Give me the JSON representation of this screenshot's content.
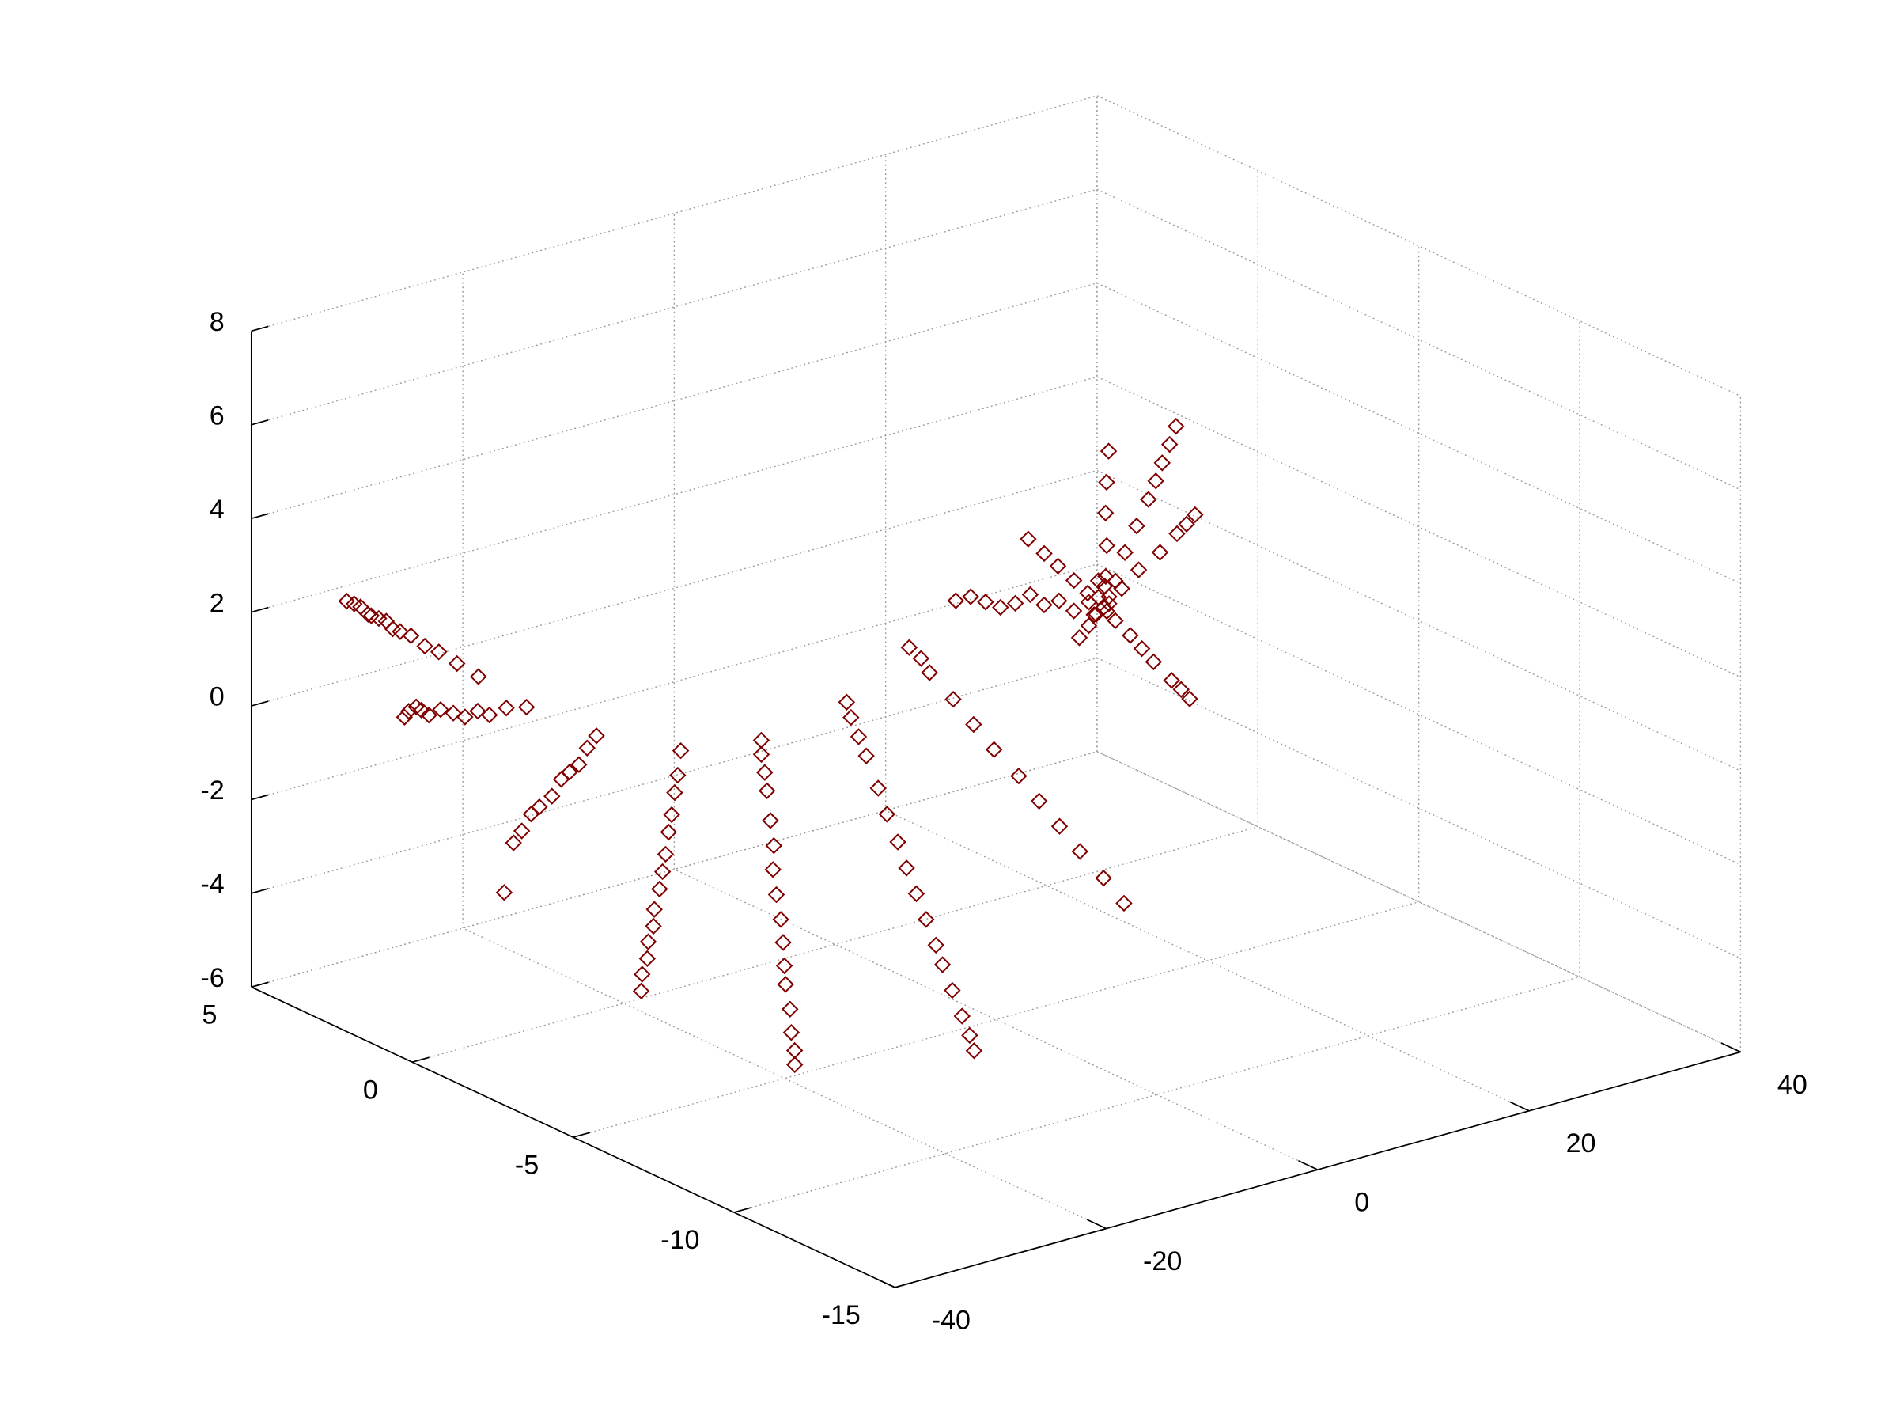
{
  "chart_data": {
    "type": "scatter3d",
    "color": "#800000",
    "marker": "diamond",
    "grid": true,
    "xlim": [
      -40,
      40
    ],
    "xticks": [
      -40,
      -20,
      0,
      20,
      40
    ],
    "ylim": [
      -15,
      5
    ],
    "yticks": [
      -15,
      -10,
      -5,
      0,
      5
    ],
    "zlim": [
      -6,
      8
    ],
    "zticks": [
      -6,
      -4,
      -2,
      0,
      2,
      4,
      6,
      8
    ],
    "x": [
      -38.9,
      -38.8,
      -38.8,
      -38.7,
      -38.7,
      -38.6,
      -38.5,
      -38.5,
      -38.4,
      -38.3,
      -38.2,
      -38.1,
      -37.9,
      -37.7,
      -38.3,
      -37.9,
      -37.5,
      -37.0,
      -36.6,
      -35.8,
      -34.9,
      -34.1,
      -33.2,
      -32.4,
      -31.1,
      -29.8,
      -38.0,
      -35.9,
      -33.9,
      -31.8,
      -29.8,
      -27.7,
      -25.6,
      -23.6,
      -21.5,
      -19.5,
      -17.4,
      -29.3,
      -28.3,
      -27.2,
      -26.2,
      -25.1,
      -24.1,
      -23.0,
      -21.8,
      -20.6,
      -19.4,
      -18.2,
      -17.0,
      -15.8,
      -14.3,
      -23.6,
      -23.0,
      -22.1,
      -21.0,
      -19.9,
      -18.8,
      -17.7,
      -16.7,
      -15.6,
      -14.4,
      -13.1,
      -11.9,
      -10.7,
      -9.7,
      -8.8,
      -8.2,
      -11.2,
      -10.7,
      -9.9,
      -9.0,
      -8.1,
      -7.2,
      -6.3,
      -5.4,
      -4.5,
      -3.5,
      -2.4,
      -1.4,
      -0.4,
      0.4,
      1.2,
      1.7,
      4.5,
      4.7,
      4.9,
      5.1,
      5.3,
      5.5,
      5.6,
      5.8,
      6.0,
      6.2,
      6.3,
      6.4,
      11.1,
      11.3,
      10.9,
      11.4,
      11.0,
      10.8,
      11.5,
      11.2,
      11.6,
      12.2,
      12.7,
      13.2,
      13.6,
      13.9,
      14.3,
      14.6,
      12.2,
      13.2,
      14.3,
      15.3,
      15.9,
      16.4,
      11.9,
      12.7,
      13.5,
      14.3,
      15.4,
      16.0,
      16.5,
      10.3,
      9.5,
      8.7,
      7.9,
      7.2,
      6.4,
      5.6,
      4.8,
      4.0,
      3.2,
      11.6,
      12.0,
      12.5,
      12.9,
      13.4,
      10.4,
      9.7,
      8.8,
      10.2,
      9.2,
      8.3,
      7.3,
      6.4
    ],
    "y": [
      2.4,
      2.2,
      2.0,
      1.8,
      1.7,
      1.5,
      1.3,
      1.1,
      0.9,
      0.6,
      0.2,
      -0.2,
      -0.7,
      -1.3,
      0.8,
      0.8,
      0.7,
      0.7,
      0.6,
      0.5,
      0.4,
      0.3,
      0.2,
      0.1,
      0,
      -0.2,
      -2.2,
      -1.8,
      -1.4,
      -1.0,
      -0.6,
      -0.3,
      0.1,
      0.5,
      0.9,
      1.3,
      1.7,
      -3.6,
      -3.3,
      -3.1,
      -2.8,
      -2.6,
      -2.3,
      -2.1,
      -1.8,
      -1.5,
      -1.2,
      -0.9,
      -0.6,
      -0.3,
      0.1,
      -6.5,
      -6.3,
      -5.9,
      -5.5,
      -5.0,
      -4.6,
      -4.2,
      -3.8,
      -3.3,
      -2.8,
      -2.4,
      -1.9,
      -1.4,
      -1.0,
      -0.6,
      -0.4,
      -8.0,
      -7.7,
      -7.2,
      -6.6,
      -6.0,
      -5.5,
      -4.9,
      -4.3,
      -3.7,
      -3.1,
      -2.4,
      -1.8,
      -1.1,
      -0.6,
      -0.1,
      0.2,
      -7.5,
      -6.8,
      -6.0,
      -5.3,
      -4.6,
      -3.9,
      -3.1,
      -2.4,
      -1.7,
      -0.9,
      -0.6,
      -0.2,
      -4.7,
      -4.8,
      -4.6,
      -4.7,
      -4.9,
      -4.5,
      -4.6,
      -4.5,
      -4.9,
      -5.0,
      -5.2,
      -5.4,
      -5.5,
      -5.6,
      -5.7,
      -5.8,
      -4.9,
      -5.1,
      -5.4,
      -5.6,
      -5.7,
      -5.8,
      -4.8,
      -5.0,
      -5.1,
      -5.2,
      -5.4,
      -5.5,
      -5.6,
      -4.5,
      -4.3,
      -4.1,
      -3.9,
      -3.7,
      -3.5,
      -3.3,
      -3.1,
      -2.9,
      -2.7,
      -4.6,
      -4.5,
      -4.3,
      -4.2,
      -4.1,
      -4.7,
      -4.7,
      -4.7,
      -4.5,
      -4.4,
      -4.2,
      -4.1,
      -3.9
    ],
    "z": [
      3,
      3,
      3,
      2.9,
      2.9,
      2.9,
      2.9,
      2.8,
      2.8,
      2.8,
      2.7,
      2.7,
      2.6,
      2.5,
      1,
      1.1,
      1.2,
      1.1,
      1,
      1.1,
      1,
      0.9,
      1,
      0.9,
      1,
      1,
      -1.8,
      -1,
      -1,
      -0.9,
      -1,
      -1,
      -0.9,
      -1,
      -1.1,
      -1,
      -1,
      -4,
      -3.8,
      -3.6,
      -3.4,
      -3.2,
      -3.0,
      -2.7,
      -2.5,
      -2.3,
      -2.0,
      -1.8,
      -1.5,
      -1.3,
      -1,
      -5,
      -4.8,
      -4.6,
      -4.3,
      -4.0,
      -3.8,
      -3.5,
      -3.2,
      -2.9,
      -2.6,
      -2.3,
      -2.0,
      -1.6,
      -1.4,
      -1.2,
      -1,
      -5,
      -4.8,
      -4.6,
      -4.3,
      -4.0,
      -3.8,
      -3.5,
      -3.2,
      -2.9,
      -2.6,
      -2.3,
      -2.0,
      -1.6,
      -1.4,
      -1.2,
      -1,
      -3,
      -2.7,
      -2.4,
      -2.1,
      -1.8,
      -1.5,
      -1.2,
      -0.9,
      -0.6,
      -0.3,
      -0.1,
      0,
      2,
      2.1,
      2.2,
      1.9,
      2.3,
      1.8,
      2.4,
      2.5,
      2.6,
      3.2,
      3.8,
      4.4,
      4.8,
      5.2,
      5.6,
      6,
      2.4,
      2.8,
      3.2,
      3.6,
      3.8,
      4,
      1.7,
      1.4,
      1.1,
      0.8,
      0.4,
      0.2,
      0,
      2.1,
      1.9,
      2.1,
      2,
      2.2,
      2,
      1.9,
      2,
      2.1,
      2,
      2.6,
      3.2,
      3.8,
      4.4,
      5,
      1.9,
      1.7,
      1.5,
      2.3,
      2.6,
      2.9,
      3.2,
      3.5
    ]
  }
}
